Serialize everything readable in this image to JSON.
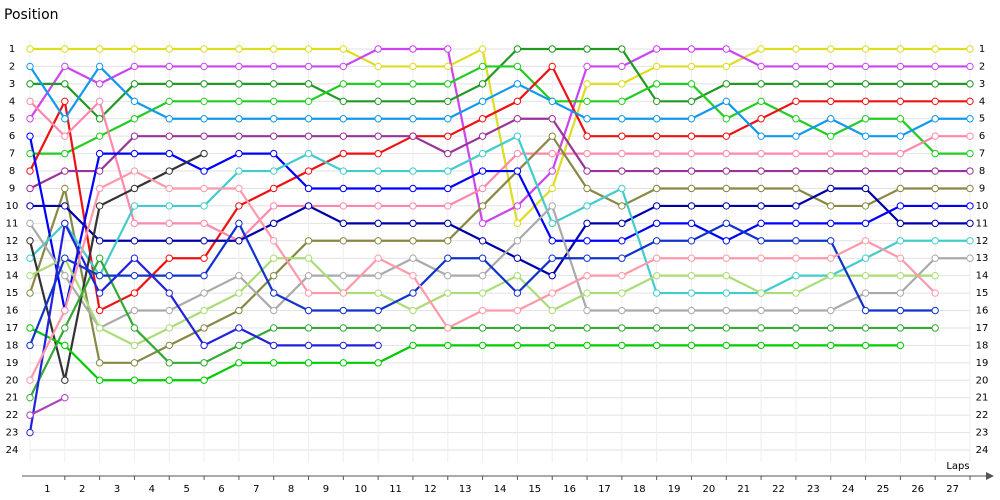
{
  "chart_data": {
    "type": "line",
    "title": "Position",
    "x_label": "Laps",
    "x": [
      0,
      1,
      2,
      3,
      4,
      5,
      6,
      7,
      8,
      9,
      10,
      11,
      12,
      13,
      14,
      15,
      16,
      17,
      18,
      19,
      20,
      21,
      22,
      23,
      24,
      25,
      26,
      27
    ],
    "xlim": [
      0,
      27
    ],
    "xticks": [
      1,
      2,
      3,
      4,
      5,
      6,
      7,
      8,
      9,
      10,
      11,
      12,
      13,
      14,
      15,
      16,
      17,
      18,
      19,
      20,
      21,
      22,
      23,
      24,
      25,
      26,
      27
    ],
    "ylim": [
      1,
      24
    ],
    "yticks": [
      1,
      2,
      3,
      4,
      5,
      6,
      7,
      8,
      9,
      10,
      11,
      12,
      13,
      14,
      15,
      16,
      17,
      18,
      19,
      20,
      21,
      22,
      23,
      24
    ],
    "y_inverted": true,
    "grid": true,
    "series": [
      {
        "color": "#dddd22",
        "values": [
          1,
          1,
          1,
          1,
          1,
          1,
          1,
          1,
          1,
          1,
          2,
          2,
          2,
          1,
          11,
          9,
          3,
          3,
          2,
          2,
          2,
          1,
          1,
          1,
          1,
          1,
          1,
          1
        ]
      },
      {
        "color": "#cc44ee",
        "values": [
          5,
          2,
          3,
          2,
          2,
          2,
          2,
          2,
          2,
          2,
          1,
          1,
          1,
          11,
          10,
          8,
          2,
          2,
          1,
          1,
          1,
          2,
          2,
          2,
          2,
          2,
          2,
          2
        ]
      },
      {
        "color": "#229922",
        "values": [
          3,
          3,
          5,
          3,
          3,
          3,
          3,
          3,
          3,
          4,
          4,
          4,
          4,
          3,
          1,
          1,
          1,
          1,
          4,
          4,
          3,
          3,
          3,
          3,
          3,
          3,
          3,
          3
        ]
      },
      {
        "color": "#22cc22",
        "values": [
          7,
          7,
          6,
          5,
          4,
          4,
          4,
          4,
          4,
          3,
          3,
          3,
          3,
          2,
          2,
          4,
          4,
          4,
          3,
          3,
          5,
          4,
          5,
          6,
          5,
          5,
          7,
          7
        ]
      },
      {
        "color": "#ee1111",
        "values": [
          8,
          4,
          16,
          15,
          13,
          13,
          10,
          9,
          8,
          7,
          7,
          6,
          6,
          5,
          4,
          2,
          6,
          6,
          6,
          6,
          6,
          5,
          4,
          4,
          4,
          4,
          4,
          4
        ]
      },
      {
        "color": "#1199ee",
        "values": [
          2,
          5,
          2,
          4,
          5,
          5,
          5,
          5,
          5,
          5,
          5,
          5,
          5,
          4,
          3,
          4,
          5,
          5,
          5,
          5,
          4,
          6,
          6,
          5,
          6,
          6,
          5,
          5
        ]
      },
      {
        "color": "#ff88aa",
        "values": [
          4,
          6,
          4,
          11,
          11,
          11,
          12,
          10,
          10,
          10,
          10,
          10,
          10,
          9,
          7,
          7,
          7,
          7,
          7,
          7,
          7,
          7,
          7,
          7,
          7,
          7,
          6,
          6
        ]
      },
      {
        "color": "#993399",
        "values": [
          9,
          8,
          8,
          6,
          6,
          6,
          6,
          6,
          6,
          6,
          6,
          6,
          7,
          6,
          5,
          5,
          8,
          8,
          8,
          8,
          8,
          8,
          8,
          8,
          8,
          8,
          8,
          8
        ]
      },
      {
        "color": "#888844",
        "values": [
          15,
          9,
          19,
          19,
          18,
          17,
          16,
          14,
          12,
          12,
          12,
          12,
          12,
          10,
          8,
          6,
          9,
          10,
          9,
          9,
          9,
          9,
          9,
          10,
          10,
          9,
          9,
          9
        ]
      },
      {
        "color": "#0000aa",
        "values": [
          10,
          10,
          12,
          12,
          12,
          12,
          12,
          11,
          10,
          11,
          11,
          11,
          11,
          12,
          13,
          14,
          11,
          11,
          10,
          10,
          10,
          10,
          10,
          9,
          9,
          11,
          11,
          11
        ]
      },
      {
        "color": "#0000ff",
        "values": [
          6,
          16,
          7,
          7,
          7,
          8,
          7,
          7,
          9,
          9,
          9,
          9,
          9,
          8,
          8,
          12,
          12,
          12,
          11,
          11,
          12,
          11,
          11,
          11,
          11,
          10,
          10,
          10
        ]
      },
      {
        "color": "#44cccc",
        "values": [
          13,
          11,
          14,
          10,
          10,
          10,
          8,
          8,
          7,
          8,
          8,
          8,
          8,
          7,
          6,
          11,
          10,
          9,
          15,
          15,
          15,
          15,
          14,
          14,
          13,
          12,
          12,
          12
        ]
      },
      {
        "color": "#aaaaaa",
        "values": [
          11,
          14,
          17,
          16,
          16,
          15,
          14,
          16,
          14,
          14,
          14,
          13,
          14,
          14,
          12,
          10,
          16,
          16,
          16,
          16,
          16,
          16,
          16,
          16,
          15,
          15,
          13,
          13
        ]
      },
      {
        "color": "#333333",
        "values": [
          12,
          20,
          10,
          9,
          8,
          7,
          null,
          null,
          null,
          null,
          null,
          null,
          null,
          null,
          null,
          null,
          null,
          null,
          null,
          null,
          null,
          null,
          null,
          null,
          null,
          null,
          null,
          null
        ]
      },
      {
        "color": "#aadd77",
        "values": [
          14,
          13,
          17,
          18,
          17,
          16,
          15,
          13,
          13,
          15,
          15,
          16,
          15,
          15,
          14,
          16,
          15,
          15,
          14,
          14,
          14,
          15,
          15,
          14,
          14,
          14,
          14,
          null
        ]
      },
      {
        "color": "#00cc00",
        "values": [
          17,
          18,
          20,
          20,
          20,
          20,
          19,
          19,
          19,
          19,
          19,
          18,
          18,
          18,
          18,
          18,
          18,
          18,
          18,
          18,
          18,
          18,
          18,
          18,
          18,
          18,
          null,
          null
        ]
      },
      {
        "color": "#33aa33",
        "values": [
          21,
          17,
          13,
          17,
          19,
          19,
          18,
          17,
          17,
          17,
          17,
          17,
          17,
          17,
          17,
          17,
          17,
          17,
          17,
          17,
          17,
          17,
          17,
          17,
          17,
          17,
          17,
          null
        ]
      },
      {
        "color": "#2222dd",
        "values": [
          23,
          11,
          15,
          13,
          15,
          18,
          17,
          18,
          18,
          18,
          18,
          null,
          null,
          null,
          null,
          null,
          null,
          null,
          null,
          null,
          null,
          null,
          null,
          null,
          null,
          null,
          null,
          null
        ]
      },
      {
        "color": "#1133cc",
        "values": [
          18,
          13,
          14,
          14,
          14,
          14,
          11,
          15,
          16,
          16,
          16,
          15,
          13,
          13,
          15,
          13,
          13,
          13,
          12,
          12,
          11,
          12,
          12,
          12,
          16,
          16,
          16,
          null
        ]
      },
      {
        "color": "#ff99aa",
        "values": [
          20,
          16,
          9,
          8,
          9,
          9,
          9,
          12,
          15,
          15,
          13,
          14,
          17,
          16,
          16,
          15,
          14,
          14,
          13,
          13,
          13,
          13,
          13,
          13,
          12,
          13,
          15,
          null
        ]
      },
      {
        "color": "#aa44bb",
        "values": [
          22,
          21,
          null,
          null,
          null,
          null,
          null,
          null,
          null,
          null,
          null,
          null,
          null,
          null,
          null,
          null,
          null,
          null,
          null,
          null,
          null,
          null,
          null,
          null,
          null,
          null,
          null,
          null
        ]
      }
    ]
  }
}
